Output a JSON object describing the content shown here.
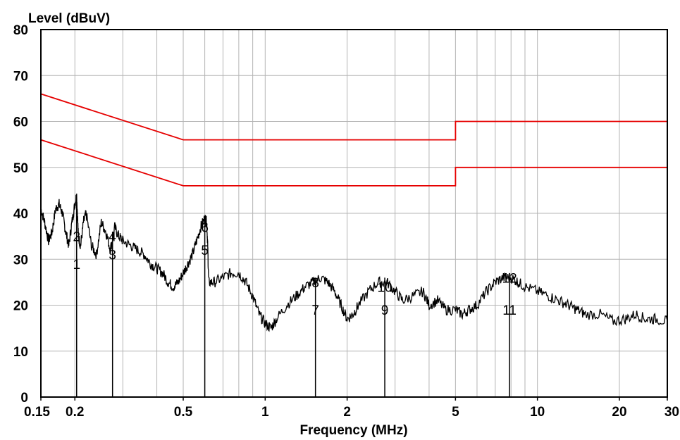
{
  "chart_data": {
    "type": "line",
    "ylabel": "Level (dBuV)",
    "xlabel": "Frequency (MHz)",
    "x_scale": "log",
    "xlim": [
      0.15,
      30
    ],
    "ylim": [
      0,
      80
    ],
    "grid": true,
    "colors": {
      "limit": "#e60000",
      "trace": "#000000",
      "grid": "#b4b4b4",
      "background": "#ffffff"
    },
    "y_ticks": [
      {
        "value": 0,
        "label": "0"
      },
      {
        "value": 10,
        "label": "10"
      },
      {
        "value": 20,
        "label": "20"
      },
      {
        "value": 30,
        "label": "30"
      },
      {
        "value": 40,
        "label": "40"
      },
      {
        "value": 50,
        "label": "50"
      },
      {
        "value": 60,
        "label": "60"
      },
      {
        "value": 70,
        "label": "70"
      },
      {
        "value": 80,
        "label": "80"
      }
    ],
    "x_ticks": [
      {
        "value": 0.15,
        "label": "0.15"
      },
      {
        "value": 0.2,
        "label": "0.2"
      },
      {
        "value": 0.5,
        "label": "0.5"
      },
      {
        "value": 1,
        "label": "1"
      },
      {
        "value": 2,
        "label": "2"
      },
      {
        "value": 5,
        "label": "5"
      },
      {
        "value": 10,
        "label": "10"
      },
      {
        "value": 20,
        "label": "20"
      },
      {
        "value": 30,
        "label": "30"
      }
    ],
    "x_grid": [
      0.2,
      0.3,
      0.4,
      0.5,
      0.6,
      0.7,
      0.8,
      0.9,
      1,
      2,
      3,
      4,
      5,
      6,
      7,
      8,
      9,
      10,
      20,
      30
    ],
    "limit_lines": [
      {
        "points": [
          [
            0.15,
            66
          ],
          [
            0.5,
            56
          ],
          [
            5,
            56
          ],
          [
            5,
            60
          ],
          [
            30,
            60
          ]
        ]
      },
      {
        "points": [
          [
            0.15,
            56
          ],
          [
            0.5,
            46
          ],
          [
            5,
            46
          ],
          [
            5,
            50
          ],
          [
            30,
            50
          ]
        ]
      }
    ],
    "trace": {
      "points": [
        [
          0.15,
          41
        ],
        [
          0.155,
          38
        ],
        [
          0.16,
          34
        ],
        [
          0.165,
          36
        ],
        [
          0.17,
          41
        ],
        [
          0.175,
          42
        ],
        [
          0.18,
          40
        ],
        [
          0.185,
          36
        ],
        [
          0.19,
          33
        ],
        [
          0.195,
          38
        ],
        [
          0.2,
          42
        ],
        [
          0.203,
          44
        ],
        [
          0.206,
          35
        ],
        [
          0.21,
          33
        ],
        [
          0.215,
          38
        ],
        [
          0.22,
          40
        ],
        [
          0.23,
          33
        ],
        [
          0.24,
          31
        ],
        [
          0.25,
          38
        ],
        [
          0.26,
          36
        ],
        [
          0.27,
          32
        ],
        [
          0.28,
          37
        ],
        [
          0.29,
          35
        ],
        [
          0.3,
          34
        ],
        [
          0.32,
          33
        ],
        [
          0.34,
          32
        ],
        [
          0.36,
          31
        ],
        [
          0.38,
          29
        ],
        [
          0.4,
          28
        ],
        [
          0.42,
          27
        ],
        [
          0.44,
          25
        ],
        [
          0.46,
          24
        ],
        [
          0.48,
          25
        ],
        [
          0.5,
          27
        ],
        [
          0.52,
          29
        ],
        [
          0.54,
          31
        ],
        [
          0.56,
          34
        ],
        [
          0.58,
          37
        ],
        [
          0.6,
          39
        ],
        [
          0.61,
          38
        ],
        [
          0.615,
          33
        ],
        [
          0.62,
          25
        ],
        [
          0.65,
          25
        ],
        [
          0.7,
          26
        ],
        [
          0.75,
          27
        ],
        [
          0.8,
          27
        ],
        [
          0.85,
          25
        ],
        [
          0.9,
          22
        ],
        [
          0.95,
          18
        ],
        [
          1.0,
          16
        ],
        [
          1.05,
          15
        ],
        [
          1.1,
          17
        ],
        [
          1.2,
          20
        ],
        [
          1.3,
          22
        ],
        [
          1.4,
          24
        ],
        [
          1.5,
          25
        ],
        [
          1.6,
          26
        ],
        [
          1.7,
          25
        ],
        [
          1.8,
          23
        ],
        [
          1.9,
          20
        ],
        [
          2.0,
          17
        ],
        [
          2.1,
          18
        ],
        [
          2.2,
          20
        ],
        [
          2.4,
          23
        ],
        [
          2.6,
          25
        ],
        [
          2.8,
          25
        ],
        [
          3.0,
          23
        ],
        [
          3.2,
          21
        ],
        [
          3.5,
          22
        ],
        [
          3.8,
          23
        ],
        [
          4.0,
          20
        ],
        [
          4.3,
          21
        ],
        [
          4.6,
          19
        ],
        [
          5.0,
          19
        ],
        [
          5.3,
          18
        ],
        [
          5.6,
          19
        ],
        [
          6.0,
          20
        ],
        [
          6.5,
          23
        ],
        [
          7.0,
          25
        ],
        [
          7.5,
          26
        ],
        [
          8.0,
          26
        ],
        [
          8.5,
          25
        ],
        [
          9.0,
          24
        ],
        [
          10,
          23
        ],
        [
          11,
          22
        ],
        [
          12,
          21
        ],
        [
          13,
          20
        ],
        [
          14,
          19
        ],
        [
          15,
          18
        ],
        [
          17,
          18
        ],
        [
          19,
          16.5
        ],
        [
          21,
          17
        ],
        [
          23,
          18
        ],
        [
          25,
          17
        ],
        [
          27,
          17
        ],
        [
          30,
          16.5
        ]
      ]
    },
    "markers": [
      {
        "label": "1",
        "x": 0.203,
        "y": 29,
        "peak": 44
      },
      {
        "label": "2",
        "x": 0.203,
        "y": 35,
        "peak": 44
      },
      {
        "label": "3",
        "x": 0.275,
        "y": 31,
        "peak": 36
      },
      {
        "label": "4",
        "x": 0.275,
        "y": 35,
        "peak": 36
      },
      {
        "label": "5",
        "x": 0.6,
        "y": 32,
        "peak": 39
      },
      {
        "label": "6",
        "x": 0.6,
        "y": 37,
        "peak": 39
      },
      {
        "label": "7",
        "x": 1.53,
        "y": 19,
        "peak": 26
      },
      {
        "label": "8",
        "x": 1.53,
        "y": 25,
        "peak": 26
      },
      {
        "label": "9",
        "x": 2.75,
        "y": 19,
        "peak": 26
      },
      {
        "label": "10",
        "x": 2.75,
        "y": 24,
        "peak": 26
      },
      {
        "label": "11",
        "x": 7.9,
        "y": 19,
        "peak": 27
      },
      {
        "label": "12",
        "x": 7.9,
        "y": 26,
        "peak": 27
      }
    ]
  }
}
